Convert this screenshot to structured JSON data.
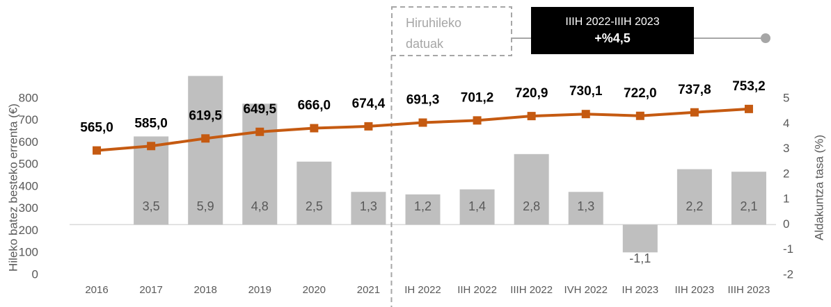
{
  "chart_data": {
    "type": "combo",
    "categories": [
      "2016",
      "2017",
      "2018",
      "2019",
      "2020",
      "2021",
      "IH 2022",
      "IIH 2022",
      "IIIH 2022",
      "IVH 2022",
      "IH 2023",
      "IIH 2023",
      "IIIH 2023"
    ],
    "series": [
      {
        "type": "bar",
        "axis": "y2",
        "color": "#bfbfbf",
        "values": [
          null,
          3.5,
          5.9,
          4.8,
          2.5,
          1.3,
          1.2,
          1.4,
          2.8,
          1.3,
          -1.1,
          2.2,
          2.1
        ],
        "value_labels": [
          null,
          "3,5",
          "5,9",
          "4,8",
          "2,5",
          "1,3",
          "1,2",
          "1,4",
          "2,8",
          "1,3",
          "-1,1",
          "2,2",
          "2,1"
        ]
      },
      {
        "type": "line",
        "axis": "y",
        "color": "#c55a11",
        "values": [
          565.0,
          585.0,
          619.5,
          649.5,
          666.0,
          674.4,
          691.3,
          701.2,
          720.9,
          730.1,
          722.0,
          737.8,
          753.2
        ],
        "value_labels": [
          "565,0",
          "585,0",
          "619,5",
          "649,5",
          "666,0",
          "674,4",
          "691,3",
          "701,2",
          "720,9",
          "730,1",
          "722,0",
          "737,8",
          "753,2"
        ]
      }
    ],
    "ylabel": "Hileko batez besteko errenta (€)",
    "y2label": "Aldakuntza tasa (%)",
    "ylim": [
      0,
      800
    ],
    "yticks": [
      0,
      100,
      200,
      300,
      400,
      500,
      600,
      700,
      800
    ],
    "y2lim": [
      -2,
      5
    ],
    "y2ticks": [
      -2,
      -1,
      0,
      1,
      2,
      3,
      4,
      5
    ],
    "quarterly_note": [
      "Hiruhileko",
      "datuak"
    ],
    "highlight": {
      "period": "IIIH 2022-IIIH 2023",
      "value": "+%4,5"
    }
  }
}
